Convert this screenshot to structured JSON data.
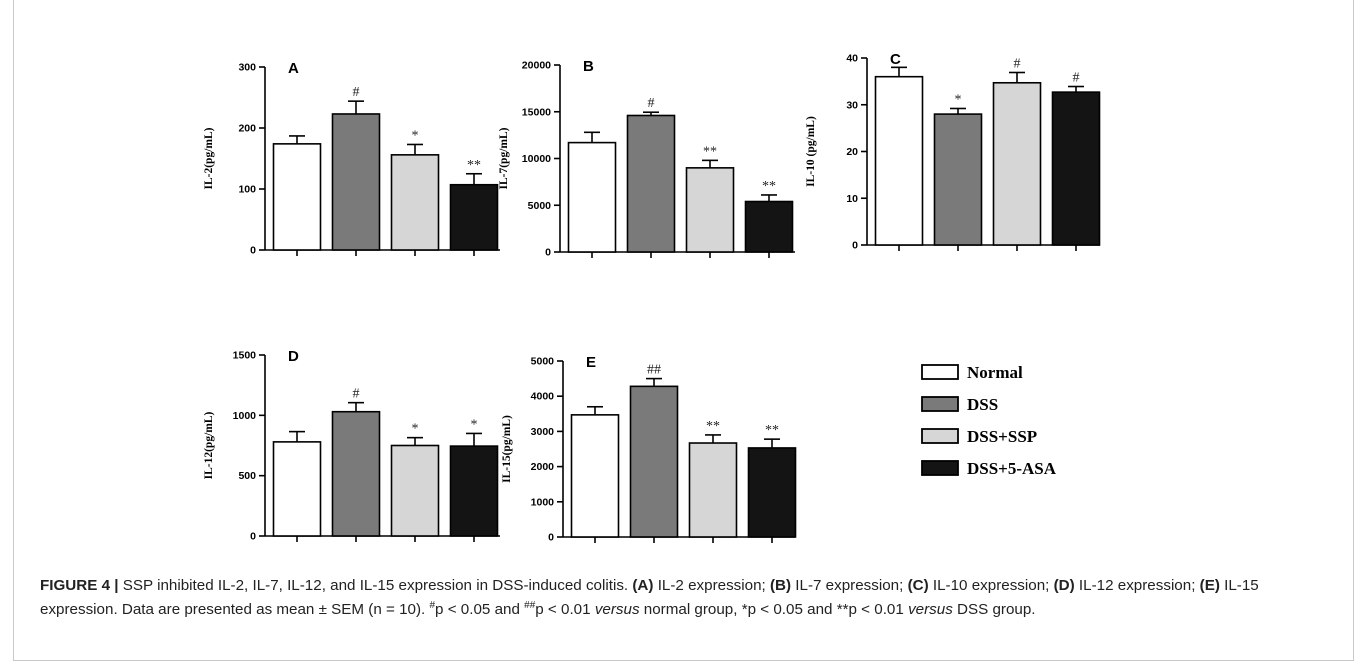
{
  "colors": {
    "Normal": "#ffffff",
    "DSS": "#7a7a7a",
    "DSS+SSP": "#d6d6d6",
    "DSS+5-ASA": "#141414"
  },
  "legend": {
    "items": [
      {
        "label": "Normal",
        "color": "#ffffff"
      },
      {
        "label": "DSS",
        "color": "#7a7a7a"
      },
      {
        "label": "DSS+SSP",
        "color": "#d6d6d6"
      },
      {
        "label": "DSS+5-ASA",
        "color": "#141414"
      }
    ]
  },
  "caption": {
    "figure_label": "FIGURE 4 |",
    "text_main": " SSP inhibited IL-2, IL-7, IL-12, and IL-15 expression in DSS-induced colitis. ",
    "part_a_label": "(A)",
    "part_a_text": " IL-2 expression; ",
    "part_b_label": "(B)",
    "part_b_text": " IL-7 expression; ",
    "part_c_label": "(C)",
    "part_c_text": " IL-10 expression; ",
    "part_d_label": "(D)",
    "part_d_text": " IL-12 expression; ",
    "part_e_label": "(E)",
    "part_e_text": " IL-15 expression. Data are presented as mean ± SEM (n = 10). ",
    "sym1": "#",
    "t1": "p < 0.05 and ",
    "sym2": "##",
    "t2": "p < 0.01 ",
    "versus1": "versus",
    "t3": " normal group, *p < 0.05 and **p < 0.01 ",
    "versus2": "versus",
    "t4": " DSS group."
  },
  "chart_data": [
    {
      "panel": "A",
      "type": "bar",
      "ylabel": "IL-2(pg/mL)",
      "ylim": [
        0,
        300
      ],
      "yticks": [
        "0",
        "100",
        "200",
        "300"
      ],
      "categories": [
        "Normal",
        "DSS",
        "DSS+SSP",
        "DSS+5-ASA"
      ],
      "values": [
        174,
        223,
        156,
        107
      ],
      "errors": [
        13,
        21,
        17,
        18
      ],
      "annotations": [
        "",
        "#",
        "*",
        "**"
      ]
    },
    {
      "panel": "B",
      "type": "bar",
      "ylabel": "IL-7(pg/mL)",
      "ylim": [
        0,
        20000
      ],
      "yticks": [
        "0",
        "5000",
        "10000",
        "15000",
        "20000"
      ],
      "categories": [
        "Normal",
        "DSS",
        "DSS+SSP",
        "DSS+5-ASA"
      ],
      "values": [
        11700,
        14600,
        9000,
        5400
      ],
      "errors": [
        1100,
        350,
        800,
        700
      ],
      "annotations": [
        "",
        "#",
        "**",
        "**"
      ]
    },
    {
      "panel": "C",
      "type": "bar",
      "ylabel": "IL-10 (pg/mL)",
      "ylim": [
        0,
        40
      ],
      "yticks": [
        "0",
        "10",
        "20",
        "30",
        "40"
      ],
      "categories": [
        "Normal",
        "DSS",
        "DSS+SSP",
        "DSS+5-ASA"
      ],
      "values": [
        36,
        28,
        34.7,
        32.7
      ],
      "errors": [
        2,
        1.2,
        2.2,
        1.2
      ],
      "annotations": [
        "",
        "*",
        "#",
        "#"
      ]
    },
    {
      "panel": "D",
      "type": "bar",
      "ylabel": "IL-12(pg/mL)",
      "ylim": [
        0,
        1500
      ],
      "yticks": [
        "0",
        "500",
        "1000",
        "1500"
      ],
      "categories": [
        "Normal",
        "DSS",
        "DSS+SSP",
        "DSS+5-ASA"
      ],
      "values": [
        780,
        1030,
        750,
        745
      ],
      "errors": [
        85,
        75,
        65,
        105
      ],
      "annotations": [
        "",
        "#",
        "*",
        "*"
      ]
    },
    {
      "panel": "E",
      "type": "bar",
      "ylabel": "IL-15(pg/mL)",
      "ylim": [
        0,
        5000
      ],
      "yticks": [
        "0",
        "1000",
        "2000",
        "3000",
        "4000",
        "5000"
      ],
      "categories": [
        "Normal",
        "DSS",
        "DSS+SSP",
        "DSS+5-ASA"
      ],
      "values": [
        3470,
        4280,
        2670,
        2530
      ],
      "errors": [
        230,
        220,
        230,
        250
      ],
      "annotations": [
        "",
        "##",
        "**",
        "**"
      ]
    }
  ]
}
